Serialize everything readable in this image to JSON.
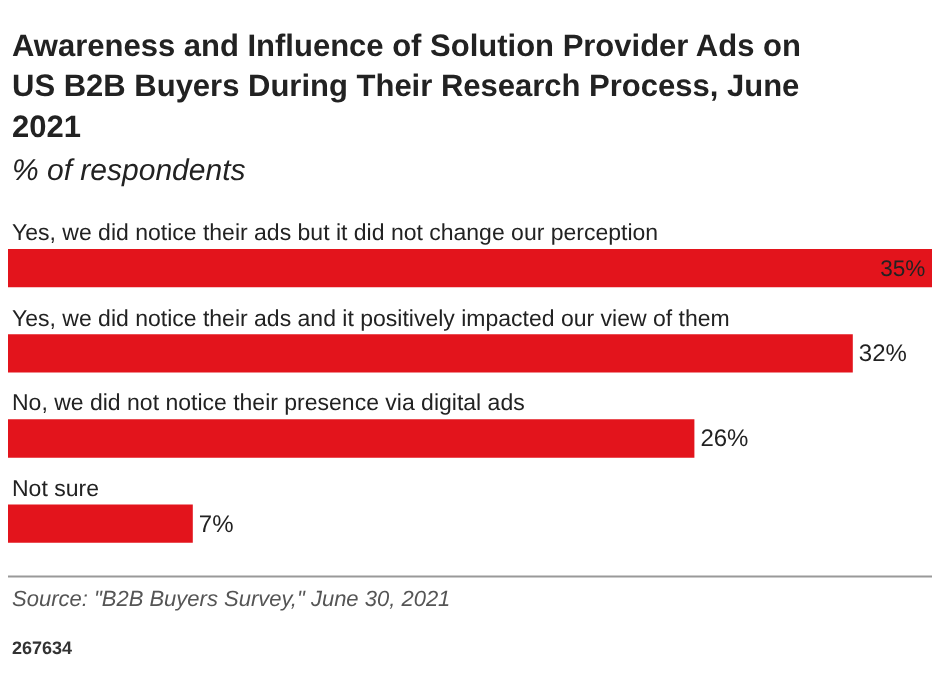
{
  "chart_data": {
    "type": "bar",
    "orientation": "horizontal",
    "title": "Awareness and Influence of Solution Provider Ads on US B2B Buyers During Their Research Process, June 2021",
    "subtitle": "% of respondents",
    "categories": [
      "Yes, we did notice their ads but it did not change our perception",
      "Yes, we did notice their ads and it positively impacted our view of them",
      "No, we did not notice their presence via digital ads",
      "Not sure"
    ],
    "values": [
      35,
      32,
      26,
      7
    ],
    "value_labels": [
      "35%",
      "32%",
      "26%",
      "7%"
    ],
    "color": "#e3141c",
    "annotations": [
      "Source: \"B2B Buyers Survey,\" June 30, 2021",
      "267634"
    ]
  }
}
